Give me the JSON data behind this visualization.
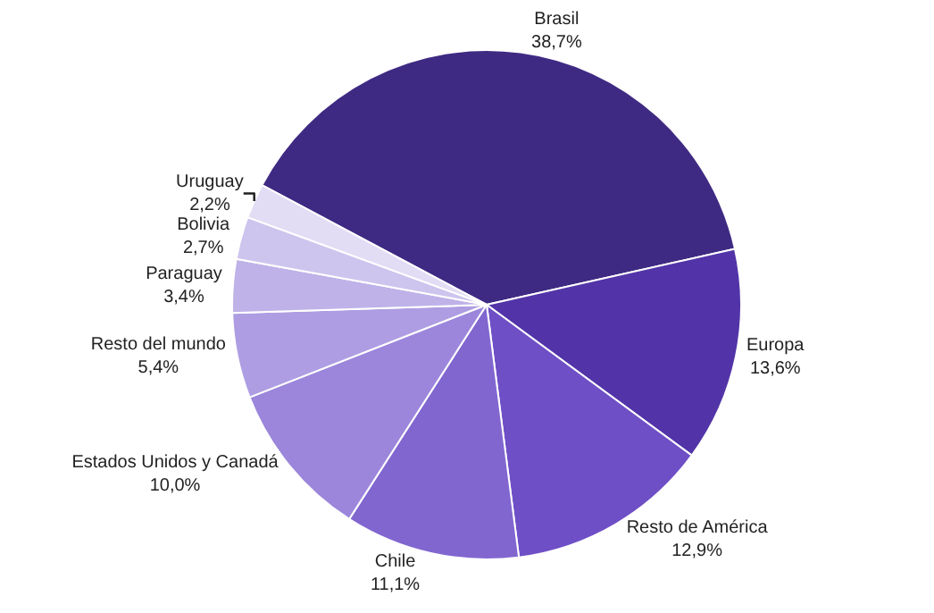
{
  "chart_data": {
    "type": "pie",
    "categories": [
      "Brasil",
      "Europa",
      "Resto de América",
      "Chile",
      "Estados Unidos y Canadá",
      "Resto del mundo",
      "Paraguay",
      "Bolivia",
      "Uruguay"
    ],
    "values": [
      38.7,
      13.6,
      12.9,
      11.1,
      10.0,
      5.4,
      3.4,
      2.7,
      2.2
    ],
    "value_labels": [
      "38,7%",
      "13,6%",
      "12,9%",
      "11,1%",
      "10,0%",
      "5,4%",
      "3,4%",
      "2,7%",
      "2,2%"
    ],
    "colors": [
      "#3f2a83",
      "#5234a8",
      "#6f4fc6",
      "#8166d0",
      "#9c86db",
      "#ae9de2",
      "#bfb2e8",
      "#cec5ee",
      "#e2ddf5"
    ],
    "legend": false
  }
}
